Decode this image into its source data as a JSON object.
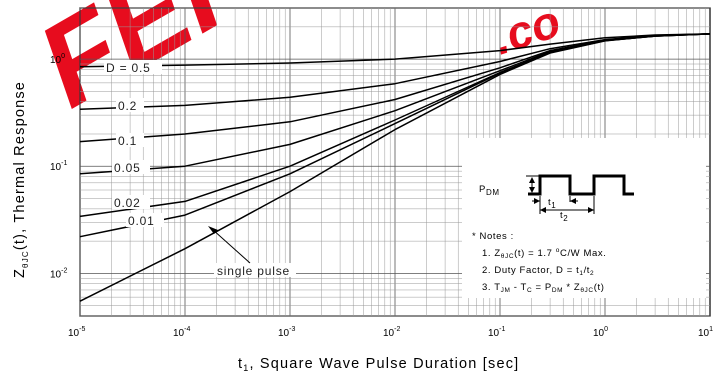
{
  "chart_data": {
    "type": "line",
    "xscale": "log",
    "yscale": "log",
    "xlim": [
      1e-05,
      10
    ],
    "ylim": [
      0.004,
      3
    ],
    "grid": true,
    "xlabel_base": "t",
    "xlabel_sub": "1",
    "xlabel_rest": ", Square Wave Pulse Duration [sec]",
    "ylabel_base": "Z",
    "ylabel_sub": "θJC",
    "ylabel_rest": "(t), Thermal Response",
    "x_ticks": [
      {
        "value": 1e-05,
        "base": "10",
        "exp": "-5"
      },
      {
        "value": 0.0001,
        "base": "10",
        "exp": "-4"
      },
      {
        "value": 0.001,
        "base": "10",
        "exp": "-3"
      },
      {
        "value": 0.01,
        "base": "10",
        "exp": "-2"
      },
      {
        "value": 0.1,
        "base": "10",
        "exp": "-1"
      },
      {
        "value": 1,
        "base": "10",
        "exp": "0"
      },
      {
        "value": 10,
        "base": "10",
        "exp": "1"
      }
    ],
    "y_ticks": [
      {
        "value": 1,
        "base": "10",
        "exp": "0"
      },
      {
        "value": 0.1,
        "base": "10",
        "exp": "-1"
      },
      {
        "value": 0.01,
        "base": "10",
        "exp": "-2"
      }
    ],
    "series": [
      {
        "name": "D = 0.5",
        "color": "#000000",
        "x": [
          1e-05,
          0.0001,
          0.001,
          0.01,
          0.1,
          0.3,
          1,
          3,
          10
        ],
        "y": [
          0.85,
          0.88,
          0.92,
          1.0,
          1.2,
          1.38,
          1.58,
          1.68,
          1.72
        ]
      },
      {
        "name": "0.2",
        "color": "#000000",
        "x": [
          1e-05,
          0.0001,
          0.001,
          0.01,
          0.1,
          0.3,
          1,
          3,
          10
        ],
        "y": [
          0.34,
          0.37,
          0.44,
          0.59,
          0.95,
          1.25,
          1.52,
          1.66,
          1.72
        ]
      },
      {
        "name": "0.1",
        "color": "#000000",
        "x": [
          1e-05,
          0.0001,
          0.001,
          0.01,
          0.1,
          0.3,
          1,
          3,
          10
        ],
        "y": [
          0.17,
          0.2,
          0.26,
          0.42,
          0.83,
          1.2,
          1.5,
          1.65,
          1.72
        ]
      },
      {
        "name": "0.05",
        "color": "#000000",
        "x": [
          1e-05,
          0.0001,
          0.001,
          0.01,
          0.1,
          0.3,
          1,
          3,
          10
        ],
        "y": [
          0.085,
          0.1,
          0.16,
          0.33,
          0.78,
          1.18,
          1.5,
          1.65,
          1.72
        ]
      },
      {
        "name": "0.02",
        "color": "#000000",
        "x": [
          1e-05,
          0.0001,
          0.001,
          0.01,
          0.1,
          0.3,
          1,
          3,
          10
        ],
        "y": [
          0.034,
          0.047,
          0.1,
          0.27,
          0.75,
          1.16,
          1.49,
          1.64,
          1.72
        ]
      },
      {
        "name": "0.01",
        "color": "#000000",
        "x": [
          1e-05,
          0.0001,
          0.001,
          0.01,
          0.1,
          0.3,
          1,
          3,
          10
        ],
        "y": [
          0.022,
          0.035,
          0.085,
          0.25,
          0.74,
          1.15,
          1.49,
          1.64,
          1.72
        ]
      },
      {
        "name": "single pulse",
        "color": "#000000",
        "x": [
          1e-05,
          0.0001,
          0.001,
          0.01,
          0.1,
          0.3,
          1,
          3,
          10
        ],
        "y": [
          0.0055,
          0.017,
          0.058,
          0.22,
          0.72,
          1.14,
          1.48,
          1.64,
          1.72
        ]
      }
    ],
    "inset": {
      "pdm_base": "P",
      "pdm_sub": "DM",
      "t1_base": "t",
      "t1_sub": "1",
      "t2_base": "t",
      "t2_sub": "2"
    },
    "notes": {
      "header": "* Notes :",
      "n1_prefix": "1. Z",
      "n1_sub": "θJC",
      "n1_mid": "(t) = 1.7 ",
      "n1_sup": "o",
      "n1_suffix": "C/W Max.",
      "n2_prefix": "2. Duty Factor, D = t",
      "n2_sub1": "1",
      "n2_slash": "/t",
      "n2_sub2": "2",
      "n3_a": "3. T",
      "n3_sub_a": "JM",
      "n3_b": " - T",
      "n3_sub_b": "C",
      "n3_c": " = P",
      "n3_sub_c": "DM",
      "n3_d": " * Z",
      "n3_sub_d": "θJC",
      "n3_e": "(t)"
    },
    "watermark": {
      "text": "FEPN",
      "dot": ".co",
      "color": "#e60012"
    }
  }
}
